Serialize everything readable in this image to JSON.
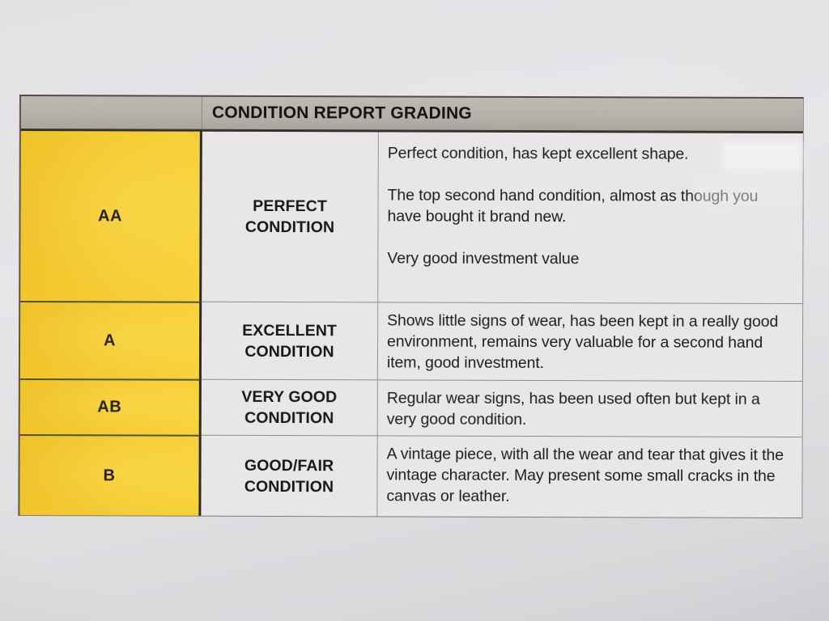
{
  "document": {
    "type": "photographed-printed-table",
    "paper_color": "#e3e1e4",
    "text_color": "#1e1c1a"
  },
  "table": {
    "header": {
      "title": "CONDITION REPORT GRADING",
      "bg_color": "#b5b1ab"
    },
    "colors": {
      "grade_bg": "#f4ca32",
      "cell_bg": "#e8e6e7",
      "header_bg": "#b5b1ab",
      "text": "#1e1c1a"
    },
    "columns": [
      "grade",
      "condition-name",
      "description"
    ],
    "rows": [
      {
        "grade": "AA",
        "name": "PERFECT CONDITION",
        "description": [
          "Perfect condition, has kept excellent shape.",
          "",
          "The top second hand condition, almost as though you have bought it brand new.",
          "",
          "Very good investment value"
        ]
      },
      {
        "grade": "A",
        "name": "EXCELLENT CONDITION",
        "description": [
          "Shows little signs of wear, has been kept in a really good environment, remains very valuable for a second hand item, good investment."
        ]
      },
      {
        "grade": "AB",
        "name": "VERY GOOD CONDITION",
        "description": [
          "Regular wear signs, has been used often but kept in a very good condition."
        ]
      },
      {
        "grade": "B",
        "name": "GOOD/FAIR CONDITION",
        "description": [
          "A vintage piece, with all the wear and tear that gives it the vintage character. May present some small cracks in the canvas or leather."
        ]
      }
    ]
  }
}
